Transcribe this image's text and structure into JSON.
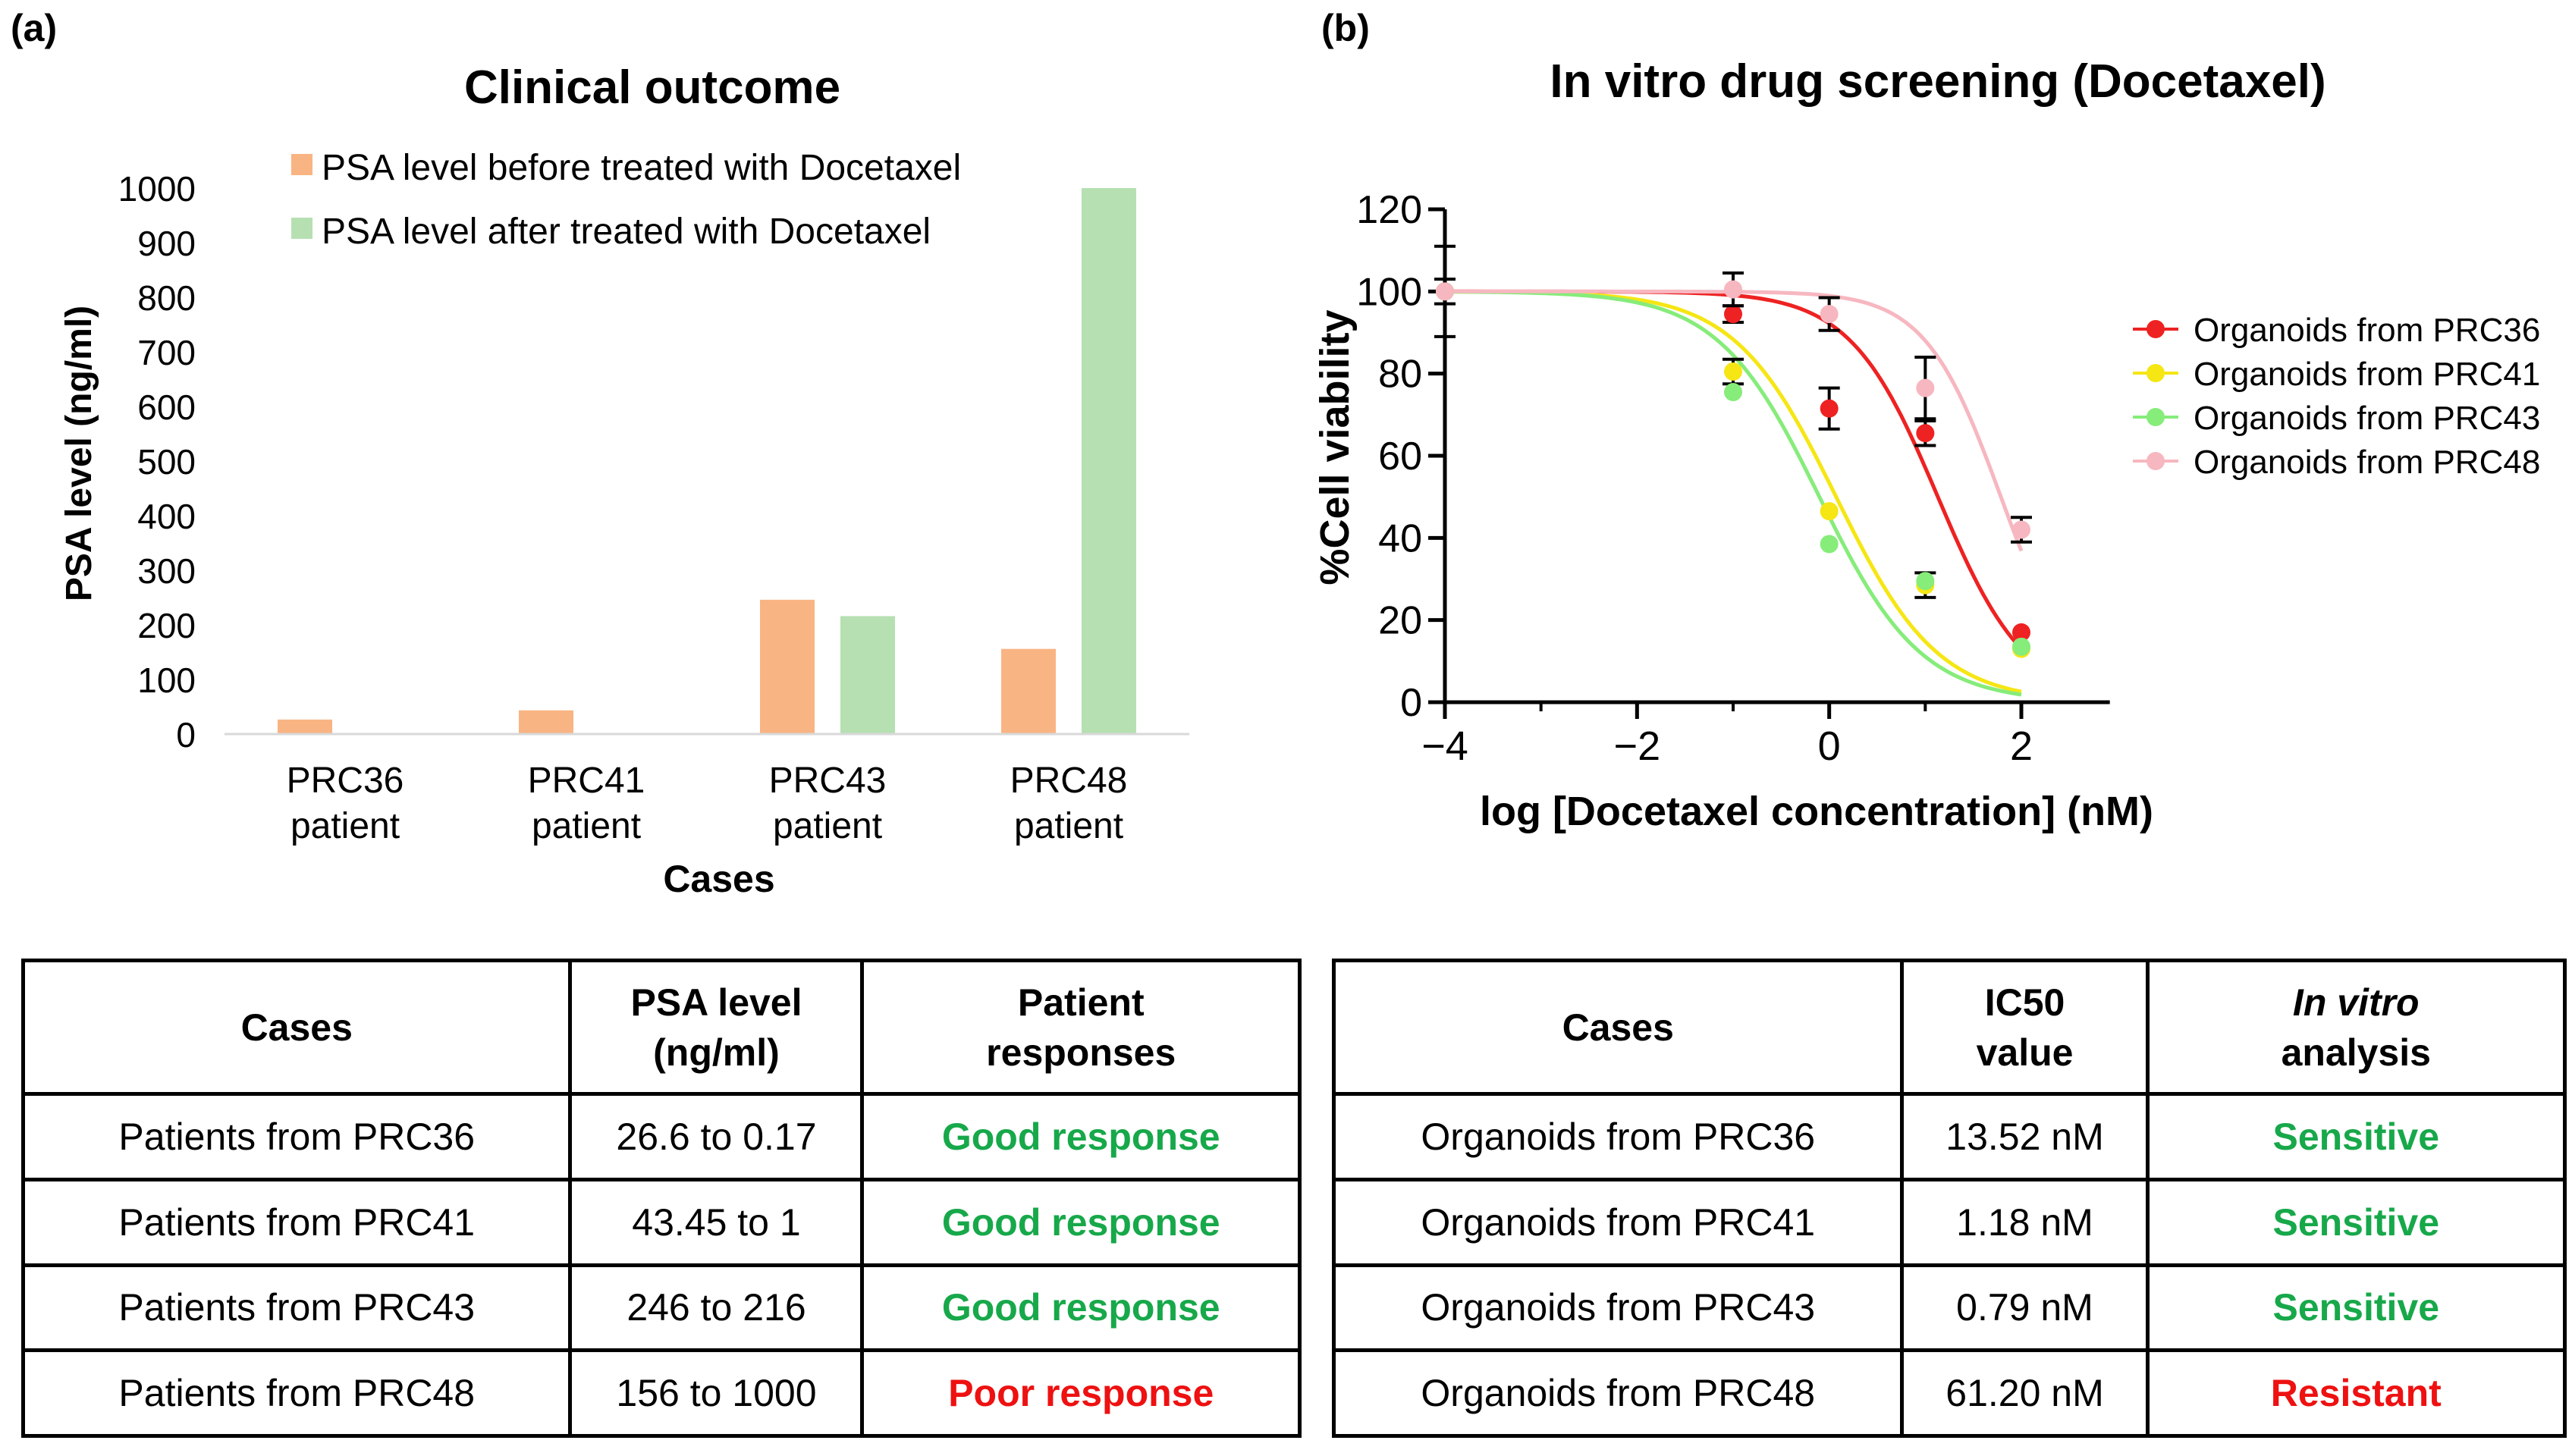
{
  "panel_a": {
    "label": "(a)",
    "chart_data": {
      "type": "bar",
      "title": "Clinical outcome",
      "xlabel": "Cases",
      "ylabel": "PSA level (ng/ml)",
      "categories": [
        [
          "PRC36",
          "patient"
        ],
        [
          "PRC41",
          "patient"
        ],
        [
          "PRC43",
          "patient"
        ],
        [
          "PRC48",
          "patient"
        ]
      ],
      "series": [
        {
          "name": "PSA level before treated with Docetaxel",
          "color": "#f9b483",
          "values": [
            26.6,
            43.45,
            246,
            156
          ]
        },
        {
          "name": "PSA level after treated with Docetaxel",
          "color": "#b6e0b2",
          "values": [
            0.17,
            1,
            216,
            1000
          ]
        }
      ],
      "ylim": [
        0,
        1000
      ],
      "yticks": [
        0,
        100,
        200,
        300,
        400,
        500,
        600,
        700,
        800,
        900,
        1000
      ],
      "grid": false,
      "legend": "top"
    }
  },
  "panel_b": {
    "label": "(b)",
    "chart_data": {
      "type": "scatter",
      "title": "In vitro drug screening (Docetaxel)",
      "xlabel": "log [Docetaxel concentration] (nM)",
      "ylabel": "%Cell viability",
      "xlim": [
        -4,
        3
      ],
      "ylim": [
        0,
        120
      ],
      "xticks": [
        -4,
        -2,
        0,
        2
      ],
      "xtick_labels": [
        "−4",
        "−2",
        "0",
        "2"
      ],
      "yticks": [
        0,
        20,
        40,
        60,
        80,
        100,
        120
      ],
      "legend": "right",
      "series": [
        {
          "name": "Organoids from PRC36",
          "color": "#ee2222",
          "x": [
            -4,
            -1,
            0,
            1,
            2
          ],
          "y": [
            100,
            94.5,
            71.5,
            65.5,
            17
          ],
          "err": [
            3,
            2,
            5,
            3,
            0
          ],
          "fit_ic50_log": 1.131,
          "fit_hill": 0.95
        },
        {
          "name": "Organoids from PRC41",
          "color": "#f5e614",
          "x": [
            -4,
            -1,
            0,
            1,
            2
          ],
          "y": [
            100,
            80.5,
            46.5,
            28.5,
            13
          ],
          "err": [
            0,
            3,
            0,
            3,
            0
          ],
          "fit_ic50_log": 0.072,
          "fit_hill": 0.82
        },
        {
          "name": "Organoids from PRC43",
          "color": "#86ec7a",
          "x": [
            -4,
            -1,
            0,
            1,
            2
          ],
          "y": [
            100,
            75.5,
            38.5,
            29.5,
            13.5
          ],
          "err": [
            0,
            0,
            0,
            0,
            0
          ],
          "fit_ic50_log": -0.102,
          "fit_hill": 0.82
        },
        {
          "name": "Organoids from PRC48",
          "color": "#f7b7c0",
          "x": [
            -4,
            -1,
            0,
            1,
            2
          ],
          "y": [
            100,
            100.5,
            94.5,
            76.5,
            42
          ],
          "err": [
            11,
            4,
            4,
            7.5,
            3
          ],
          "fit_ic50_log": 1.787,
          "fit_hill": 1.1
        }
      ]
    }
  },
  "table_left": {
    "headers": [
      "Cases",
      "PSA level\n(ng/ml)",
      "Patient\nresponses"
    ],
    "rows": [
      [
        "Patients from PRC36",
        "26.6 to 0.17",
        "Good response"
      ],
      [
        "Patients from PRC41",
        "43.45 to 1",
        "Good response"
      ],
      [
        "Patients from PRC43",
        "246 to 216",
        "Good response"
      ],
      [
        "Patients from PRC48",
        "156 to 1000",
        "Poor response"
      ]
    ]
  },
  "table_right": {
    "headers": [
      "Cases",
      "IC50\nvalue",
      "In vitro",
      "analysis"
    ],
    "rows": [
      [
        "Organoids from PRC36",
        "13.52 nM",
        "Sensitive"
      ],
      [
        "Organoids from PRC41",
        "1.18 nM",
        "Sensitive"
      ],
      [
        "Organoids from PRC43",
        "0.79 nM",
        "Sensitive"
      ],
      [
        "Organoids from PRC48",
        "61.20 nM",
        "Resistant"
      ]
    ]
  },
  "colors": {
    "good": "#17a84a",
    "poor": "#ee1111"
  }
}
